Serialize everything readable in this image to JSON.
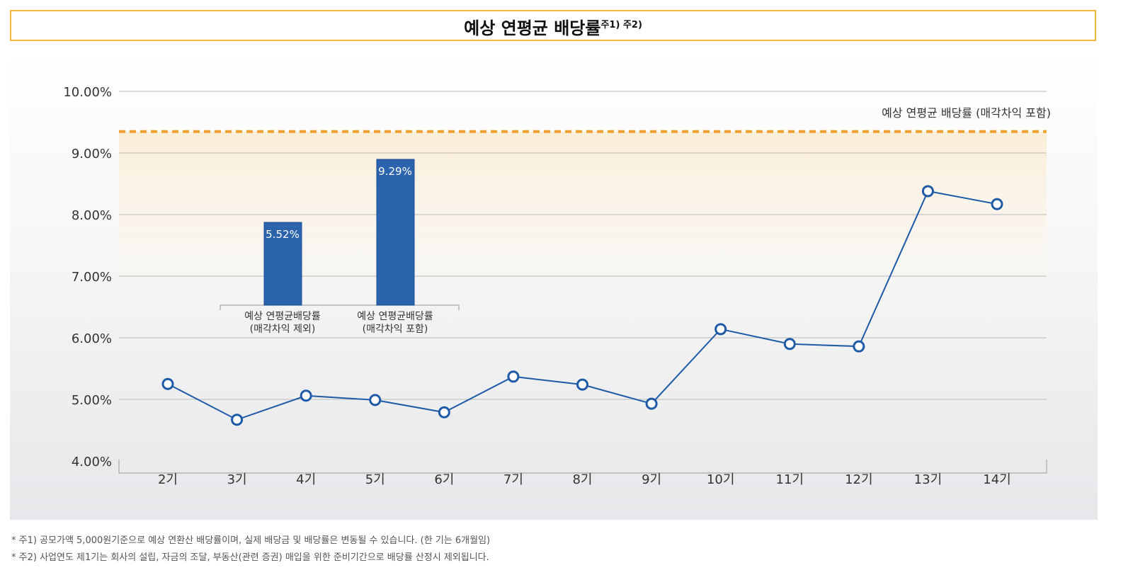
{
  "title": "예상 연평균 배당률",
  "title_notes": "주1) 주2)",
  "chart_data": {
    "type": "line",
    "categories": [
      "2기",
      "3기",
      "4기",
      "5기",
      "6기",
      "7기",
      "8기",
      "9기",
      "10기",
      "11기",
      "12기",
      "13기",
      "14기"
    ],
    "values": [
      5.25,
      4.67,
      5.06,
      4.99,
      4.79,
      5.37,
      5.24,
      4.93,
      6.14,
      5.9,
      5.86,
      8.38,
      8.17
    ],
    "ylim": [
      4,
      10
    ],
    "yticks": [
      "4.00%",
      "5.00%",
      "6.00%",
      "7.00%",
      "8.00%",
      "9.00%",
      "10.00%"
    ],
    "grid": true,
    "colors": {
      "line": "#1f5aa6",
      "bar": "#2b63ad",
      "reference": "#f0a030"
    },
    "reference_line": {
      "label": "예상 연평균 배당률 (매각차익 포함)",
      "value": 9.29
    },
    "inset_bars": [
      {
        "label_line1": "예상 연평균배당률",
        "label_line2": "(매각차익 제외)",
        "value": 5.52,
        "value_label": "5.52%"
      },
      {
        "label_line1": "예상 연평균배당률",
        "label_line2": "(매각차익 포함)",
        "value": 9.29,
        "value_label": "9.29%"
      }
    ]
  },
  "footnotes": [
    "* 주1) 공모가액 5,000원기준으로 예상 연환산 배당률이며, 실제 배당금 및 배당률은 변동될 수 있습니다. (한 기는 6개월임)",
    "* 주2) 사업연도 제1기는 회사의 설립, 자금의 조달, 부동산(관련 증권) 매입을 위한 준비기간으로 배당률 산정시 제외됩니다."
  ]
}
